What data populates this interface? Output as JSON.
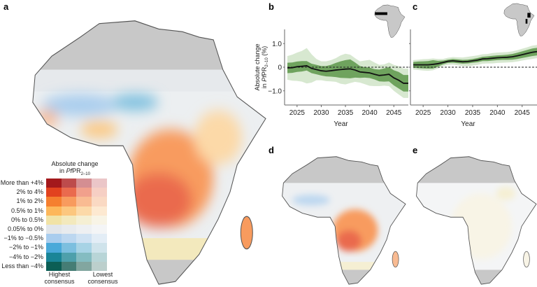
{
  "panels": {
    "a": "a",
    "b": "b",
    "c": "c",
    "d": "d",
    "e": "e"
  },
  "legend": {
    "title_line1": "Absolute change",
    "title_line2_prefix": "in ",
    "title_italic": "Pf",
    "title_main": "PR",
    "title_sub": "2–10",
    "rows": [
      {
        "label": "More than +4%",
        "colors": [
          "#a3191c",
          "#bd4b4c",
          "#d48e92",
          "#ebc6c8"
        ]
      },
      {
        "label": "2% to 4%",
        "colors": [
          "#e2421f",
          "#ea6a4e",
          "#f1a08c",
          "#f6cfc4"
        ]
      },
      {
        "label": "1% to 2%",
        "colors": [
          "#f57f2f",
          "#f89b5e",
          "#f9bb92",
          "#fad9c3"
        ]
      },
      {
        "label": "0.5% to 1%",
        "colors": [
          "#fdb75a",
          "#fcc77f",
          "#fcd9a8",
          "#fde9d1"
        ]
      },
      {
        "label": "0% to 0.5%",
        "colors": [
          "#f1e3a6",
          "#f3e9bd",
          "#f5efd3",
          "#f8f4e6"
        ]
      },
      {
        "label": "0.05% to 0%",
        "colors": [
          "#e2e6ea",
          "#e8ebee",
          "#eef0f2",
          "#f4f5f6"
        ]
      },
      {
        "label": "−1% to −0.5%",
        "colors": [
          "#a9cdee",
          "#bcd7f0",
          "#cfe2f3",
          "#e3edf6"
        ]
      },
      {
        "label": "−2% to −1%",
        "colors": [
          "#4aa9d9",
          "#7cbfdf",
          "#a7d3e5",
          "#cfe3eb"
        ]
      },
      {
        "label": "−4% to −2%",
        "colors": [
          "#1a8597",
          "#4ea0ab",
          "#84bcc1",
          "#b8d5d7"
        ]
      },
      {
        "label": "Less than −4%",
        "colors": [
          "#0c5e55",
          "#457d75",
          "#82a6a0",
          "#bccfcc"
        ]
      }
    ],
    "foot_left": "Highest consensus",
    "foot_right": "Lowest consensus"
  },
  "colors": {
    "no_data": "#c8c8c8",
    "line": "#111111",
    "band_inner": "#6fa35e",
    "band_outer": "#d7e8d0",
    "border": "#555555"
  },
  "chart_data": [
    {
      "type": "line",
      "panel": "b",
      "ylabel": "Absolute change in PfPR2–10 (%)",
      "xlabel": "Year",
      "x": [
        2023,
        2024,
        2025,
        2026,
        2027,
        2028,
        2029,
        2030,
        2031,
        2032,
        2033,
        2034,
        2035,
        2036,
        2037,
        2038,
        2039,
        2040,
        2041,
        2042,
        2043,
        2044,
        2045,
        2046,
        2047,
        2048
      ],
      "y": [
        -0.03,
        -0.02,
        0.02,
        0.04,
        0.06,
        -0.05,
        -0.1,
        -0.15,
        -0.17,
        -0.15,
        -0.12,
        -0.1,
        -0.08,
        -0.07,
        -0.12,
        -0.2,
        -0.22,
        -0.24,
        -0.3,
        -0.35,
        -0.33,
        -0.3,
        -0.45,
        -0.55,
        -0.68,
        -0.68
      ],
      "inner_halfwidth": [
        0.22,
        0.22,
        0.22,
        0.22,
        0.2,
        0.2,
        0.2,
        0.2,
        0.22,
        0.25,
        0.3,
        0.35,
        0.38,
        0.4,
        0.32,
        0.25,
        0.22,
        0.22,
        0.22,
        0.25,
        0.28,
        0.3,
        0.32,
        0.35,
        0.35,
        0.35
      ],
      "outer_halfwidth": [
        0.5,
        0.55,
        0.6,
        0.65,
        0.75,
        0.6,
        0.45,
        0.4,
        0.42,
        0.45,
        0.5,
        0.6,
        0.65,
        0.6,
        0.5,
        0.45,
        0.5,
        0.55,
        0.5,
        0.45,
        0.45,
        0.5,
        0.55,
        0.6,
        0.62,
        0.62
      ],
      "xticks": [
        "2025",
        "2030",
        "2035",
        "2040",
        "2045"
      ],
      "yticks": [
        "1.0",
        "0",
        "−1.0"
      ],
      "xlim": [
        2023,
        2048
      ],
      "ylim": [
        -1.6,
        1.6
      ],
      "reference_line": 0
    },
    {
      "type": "line",
      "panel": "c",
      "xlabel": "Year",
      "x": [
        2023,
        2024,
        2025,
        2026,
        2027,
        2028,
        2029,
        2030,
        2031,
        2032,
        2033,
        2034,
        2035,
        2036,
        2037,
        2038,
        2039,
        2040,
        2041,
        2042,
        2043,
        2044,
        2045,
        2046,
        2047,
        2048
      ],
      "y": [
        0.1,
        0.1,
        0.1,
        0.1,
        0.12,
        0.15,
        0.2,
        0.25,
        0.27,
        0.25,
        0.23,
        0.24,
        0.27,
        0.3,
        0.35,
        0.36,
        0.38,
        0.4,
        0.41,
        0.42,
        0.44,
        0.48,
        0.53,
        0.58,
        0.63,
        0.66
      ],
      "inner_halfwidth": [
        0.12,
        0.14,
        0.15,
        0.16,
        0.18,
        0.12,
        0.08,
        0.07,
        0.08,
        0.08,
        0.08,
        0.08,
        0.08,
        0.09,
        0.09,
        0.1,
        0.1,
        0.1,
        0.1,
        0.11,
        0.12,
        0.13,
        0.14,
        0.15,
        0.16,
        0.16
      ],
      "outer_halfwidth": [
        0.2,
        0.22,
        0.24,
        0.25,
        0.25,
        0.2,
        0.15,
        0.15,
        0.16,
        0.17,
        0.18,
        0.2,
        0.2,
        0.2,
        0.2,
        0.2,
        0.22,
        0.22,
        0.22,
        0.22,
        0.23,
        0.24,
        0.25,
        0.26,
        0.28,
        0.28
      ],
      "xticks": [
        "2025",
        "2030",
        "2035",
        "2040",
        "2045"
      ],
      "xlim": [
        2023,
        2048
      ],
      "ylim": [
        -1.6,
        1.6
      ],
      "reference_line": 0
    }
  ]
}
